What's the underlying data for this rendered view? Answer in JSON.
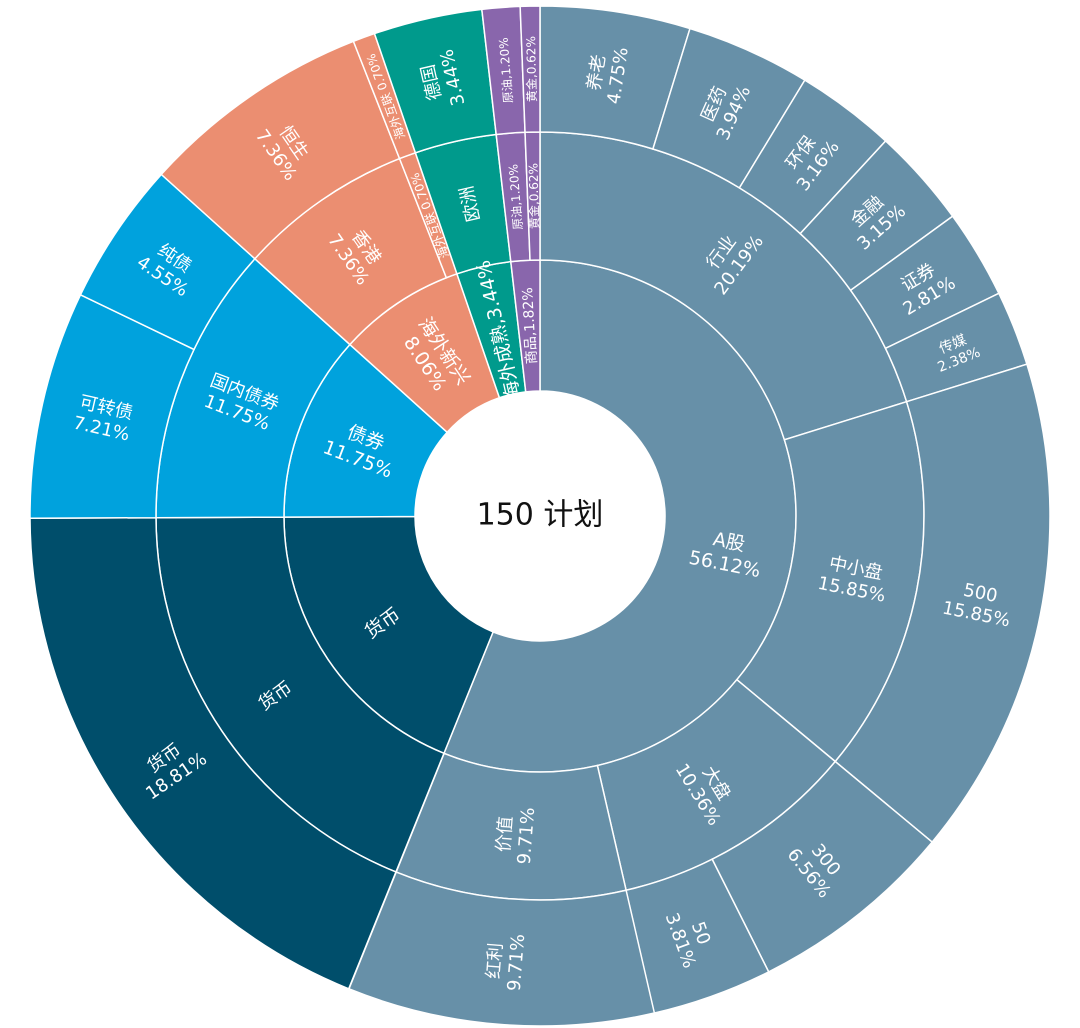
{
  "chart_data": {
    "type": "sunburst",
    "title": "150 计划",
    "colors": {
      "A股": "#6790a8",
      "货币": "#004e6b",
      "债券": "#00a2dd",
      "海外新兴": "#eb8e71",
      "海外成熟": "#009a8c",
      "商品": "#8966ac"
    },
    "children": [
      {
        "name": "A股",
        "label": "A股\n56.12%",
        "value": 56.12,
        "children": [
          {
            "name": "行业",
            "label": "行业\n20.19%",
            "value": 20.19,
            "children": [
              {
                "name": "养老",
                "label": "养老\n4.75%",
                "value": 4.75
              },
              {
                "name": "医药",
                "label": "医药\n3.94%",
                "value": 3.94
              },
              {
                "name": "环保",
                "label": "环保\n3.16%",
                "value": 3.16
              },
              {
                "name": "金融",
                "label": "金融\n3.15%",
                "value": 3.15
              },
              {
                "name": "证券",
                "label": "证券\n2.81%",
                "value": 2.81
              },
              {
                "name": "传媒",
                "label": "传媒\n2.38%",
                "value": 2.38
              }
            ]
          },
          {
            "name": "中小盘",
            "label": "中小盘\n15.85%",
            "value": 15.85,
            "children": [
              {
                "name": "500",
                "label": "500\n15.85%",
                "value": 15.85
              }
            ]
          },
          {
            "name": "大盘",
            "label": "大盘\n10.36%",
            "value": 10.36,
            "children": [
              {
                "name": "300",
                "label": "300\n6.56%",
                "value": 6.56
              },
              {
                "name": "50",
                "label": "50\n3.81%",
                "value": 3.81
              }
            ]
          },
          {
            "name": "价值",
            "label": "价值\n9.71%",
            "value": 9.71,
            "children": [
              {
                "name": "红利",
                "label": "红利\n9.71%",
                "value": 9.71
              }
            ]
          }
        ]
      },
      {
        "name": "货币",
        "label": "货币",
        "value": 18.81,
        "children": [
          {
            "name": "货币",
            "label": "货币",
            "value": 18.81,
            "children": [
              {
                "name": "货币",
                "label": "货币\n18.81%",
                "value": 18.81
              }
            ]
          }
        ]
      },
      {
        "name": "债券",
        "label": "债券\n11.75%",
        "value": 11.75,
        "children": [
          {
            "name": "国内债券",
            "label": "国内债券\n11.75%",
            "value": 11.75,
            "children": [
              {
                "name": "可转债",
                "label": "可转债\n7.21%",
                "value": 7.21
              },
              {
                "name": "纯债",
                "label": "纯债\n4.55%",
                "value": 4.55
              }
            ]
          }
        ]
      },
      {
        "name": "海外新兴",
        "label": "海外新兴\n8.06%",
        "value": 8.06,
        "children": [
          {
            "name": "香港",
            "label": "香港\n7.36%",
            "value": 7.36,
            "children": [
              {
                "name": "恒生",
                "label": "恒生\n7.36%",
                "value": 7.36
              }
            ]
          },
          {
            "name": "海外互联",
            "label": "海外互联 0.70%",
            "value": 0.7,
            "children": [
              {
                "name": "海外互联",
                "label": "海外互联 0.70%",
                "value": 0.7
              }
            ]
          }
        ]
      },
      {
        "name": "海外成熟",
        "label": "海外成熟,3.44%",
        "value": 3.44,
        "children": [
          {
            "name": "欧洲",
            "label": "欧洲",
            "value": 3.44,
            "children": [
              {
                "name": "德国",
                "label": "德国\n3.44%",
                "value": 3.44
              }
            ]
          }
        ]
      },
      {
        "name": "商品",
        "label": "商品,1.82%",
        "value": 1.82,
        "children": [
          {
            "name": "原油",
            "label": "原油,1.20%",
            "value": 1.2,
            "children": [
              {
                "name": "原油",
                "label": "原油,1.20%",
                "value": 1.2
              }
            ]
          },
          {
            "name": "黄金",
            "label": "黄金,0.62%",
            "value": 0.62,
            "children": [
              {
                "name": "黄金",
                "label": "黄金,0.62%",
                "value": 0.62
              }
            ]
          }
        ]
      }
    ]
  }
}
